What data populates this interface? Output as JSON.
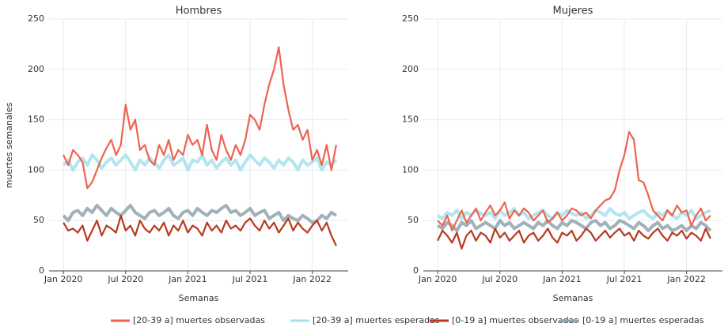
{
  "chart_data": [
    {
      "type": "line",
      "title": "Hombres",
      "x_label": "Semanas",
      "y_label": "muertes semanales",
      "x": [
        0,
        2,
        4,
        6,
        8,
        10,
        12,
        14,
        16,
        18,
        20,
        22,
        24,
        26,
        28,
        30,
        32,
        34,
        36,
        38,
        40,
        42,
        44,
        46,
        48,
        50,
        52,
        54,
        56,
        58,
        60,
        62,
        64,
        66,
        68,
        70,
        72,
        74,
        76,
        78,
        80,
        82,
        84,
        86,
        88,
        90,
        92,
        94,
        96,
        98,
        100,
        102,
        104,
        106,
        108,
        110,
        112,
        114
      ],
      "xlim": [
        -6,
        119
      ],
      "xticks": [
        {
          "value": 0,
          "label": "Jan 2020"
        },
        {
          "value": 26,
          "label": "Jul 2020"
        },
        {
          "value": 52,
          "label": "Jan 2021"
        },
        {
          "value": 78,
          "label": "Jul 2021"
        },
        {
          "value": 104,
          "label": "Jan 2022"
        }
      ],
      "ylim": [
        0,
        250
      ],
      "yticks": [
        0,
        50,
        100,
        150,
        200,
        250
      ],
      "grid": true,
      "series": [
        {
          "name": "[0-19 a] muertes esperadas",
          "color": "#8fa3ad",
          "values": [
            55,
            50,
            58,
            60,
            55,
            62,
            58,
            65,
            60,
            55,
            62,
            58,
            55,
            60,
            65,
            58,
            55,
            52,
            58,
            60,
            55,
            58,
            62,
            55,
            52,
            58,
            60,
            55,
            62,
            58,
            55,
            60,
            58,
            62,
            65,
            58,
            60,
            55,
            58,
            62,
            55,
            58,
            60,
            52,
            55,
            58,
            50,
            55,
            52,
            50,
            55,
            52,
            48,
            50,
            55,
            52,
            58,
            55
          ]
        },
        {
          "name": "[20-39 a] muertes esperadas",
          "color": "#a6e0ef",
          "values": [
            105,
            110,
            100,
            108,
            112,
            105,
            115,
            110,
            102,
            108,
            112,
            105,
            110,
            115,
            108,
            100,
            110,
            105,
            112,
            108,
            102,
            110,
            115,
            105,
            108,
            112,
            100,
            110,
            108,
            115,
            105,
            110,
            102,
            108,
            112,
            105,
            110,
            100,
            108,
            115,
            110,
            105,
            112,
            108,
            102,
            110,
            105,
            112,
            108,
            100,
            110,
            105,
            108,
            112,
            100,
            108,
            105,
            110
          ]
        },
        {
          "name": "[0-19 a] muertes observadas",
          "color": "#b8391f",
          "values": [
            48,
            40,
            42,
            38,
            45,
            30,
            40,
            50,
            35,
            45,
            42,
            38,
            55,
            40,
            45,
            35,
            50,
            42,
            38,
            45,
            40,
            48,
            35,
            45,
            40,
            50,
            38,
            45,
            42,
            35,
            48,
            40,
            45,
            38,
            50,
            42,
            45,
            40,
            48,
            52,
            45,
            40,
            50,
            42,
            48,
            38,
            45,
            52,
            40,
            48,
            42,
            38,
            45,
            50,
            40,
            48,
            35,
            25
          ]
        },
        {
          "name": "[20-39 a] muertes observadas",
          "color": "#ec6450",
          "values": [
            115,
            105,
            120,
            115,
            108,
            82,
            88,
            100,
            112,
            122,
            130,
            115,
            125,
            165,
            140,
            150,
            120,
            125,
            110,
            105,
            125,
            115,
            130,
            110,
            120,
            115,
            135,
            125,
            130,
            115,
            145,
            120,
            110,
            135,
            120,
            110,
            125,
            115,
            130,
            155,
            150,
            140,
            165,
            185,
            200,
            222,
            185,
            160,
            140,
            145,
            130,
            140,
            110,
            120,
            105,
            125,
            100,
            125
          ]
        }
      ]
    },
    {
      "type": "line",
      "title": "Mujeres",
      "x_label": "Semanas",
      "x": [
        0,
        2,
        4,
        6,
        8,
        10,
        12,
        14,
        16,
        18,
        20,
        22,
        24,
        26,
        28,
        30,
        32,
        34,
        36,
        38,
        40,
        42,
        44,
        46,
        48,
        50,
        52,
        54,
        56,
        58,
        60,
        62,
        64,
        66,
        68,
        70,
        72,
        74,
        76,
        78,
        80,
        82,
        84,
        86,
        88,
        90,
        92,
        94,
        96,
        98,
        100,
        102,
        104,
        106,
        108,
        110,
        112,
        114
      ],
      "xlim": [
        -6,
        119
      ],
      "xticks": [
        {
          "value": 0,
          "label": "Jan 2020"
        },
        {
          "value": 26,
          "label": "Jul 2020"
        },
        {
          "value": 52,
          "label": "Jan 2021"
        },
        {
          "value": 78,
          "label": "Jul 2021"
        },
        {
          "value": 104,
          "label": "Jan 2022"
        }
      ],
      "ylim": [
        0,
        250
      ],
      "yticks": [
        0,
        50,
        100,
        150,
        200,
        250
      ],
      "grid": true,
      "series": [
        {
          "color": "#8fa3ad",
          "values": [
            45,
            42,
            48,
            45,
            40,
            48,
            45,
            50,
            42,
            45,
            48,
            45,
            42,
            50,
            45,
            48,
            42,
            45,
            48,
            45,
            42,
            48,
            45,
            50,
            45,
            42,
            48,
            45,
            50,
            48,
            45,
            42,
            48,
            50,
            45,
            48,
            42,
            45,
            50,
            48,
            45,
            42,
            48,
            45,
            40,
            45,
            48,
            42,
            45,
            40,
            42,
            45,
            40,
            45,
            42,
            48,
            45,
            40
          ]
        },
        {
          "color": "#a6e0ef",
          "values": [
            55,
            52,
            58,
            55,
            60,
            52,
            58,
            55,
            60,
            57,
            55,
            58,
            52,
            60,
            55,
            58,
            62,
            55,
            58,
            52,
            55,
            58,
            60,
            55,
            52,
            58,
            55,
            60,
            57,
            55,
            58,
            52,
            55,
            60,
            58,
            55,
            62,
            57,
            55,
            58,
            52,
            55,
            58,
            60,
            55,
            52,
            58,
            55,
            60,
            55,
            52,
            58,
            55,
            60,
            52,
            55,
            58,
            60
          ]
        },
        {
          "color": "#b8391f",
          "values": [
            30,
            40,
            35,
            28,
            38,
            22,
            35,
            40,
            30,
            38,
            35,
            28,
            42,
            33,
            38,
            30,
            35,
            40,
            28,
            35,
            38,
            30,
            35,
            42,
            33,
            28,
            38,
            35,
            40,
            30,
            35,
            42,
            38,
            30,
            35,
            40,
            33,
            38,
            42,
            35,
            38,
            30,
            40,
            35,
            32,
            38,
            42,
            35,
            30,
            38,
            35,
            40,
            32,
            38,
            35,
            30,
            42,
            32
          ]
        },
        {
          "color": "#ec6450",
          "values": [
            50,
            45,
            55,
            40,
            50,
            60,
            48,
            55,
            62,
            50,
            58,
            65,
            55,
            60,
            68,
            52,
            60,
            55,
            62,
            58,
            50,
            55,
            60,
            48,
            52,
            58,
            50,
            55,
            62,
            60,
            55,
            58,
            52,
            60,
            65,
            70,
            72,
            80,
            100,
            115,
            138,
            130,
            90,
            88,
            75,
            60,
            55,
            50,
            60,
            55,
            65,
            58,
            60,
            45,
            55,
            62,
            50,
            55
          ]
        }
      ]
    }
  ]
}
